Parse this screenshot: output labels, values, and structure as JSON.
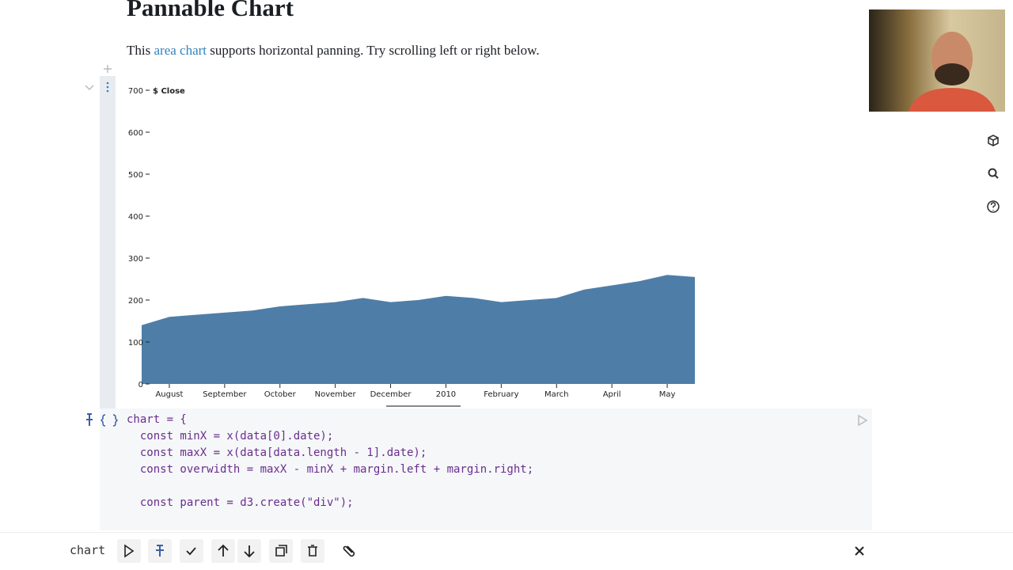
{
  "page": {
    "title": "Pannable Chart",
    "intro": {
      "before": "This",
      "link": "area chart",
      "after": "supports horizontal panning. Try scrolling left or right below."
    }
  },
  "chart_data": {
    "type": "area",
    "y_label": "$ Close",
    "color": "#4e7ea8",
    "categories": [
      null,
      "August",
      null,
      "September",
      null,
      "October",
      null,
      "November",
      null,
      "December",
      null,
      "2010",
      null,
      "February",
      null,
      "March",
      null,
      "April",
      null,
      "May",
      null
    ],
    "values": [
      140,
      160,
      165,
      170,
      175,
      185,
      190,
      195,
      205,
      195,
      200,
      210,
      205,
      195,
      200,
      205,
      225,
      235,
      245,
      260,
      255
    ],
    "ylim": [
      0,
      700
    ],
    "yticks": [
      0,
      100,
      200,
      300,
      400,
      500,
      600,
      700
    ]
  },
  "code": {
    "block1": [
      "chart = {",
      "  const minX = x(data[0].date);",
      "  const maxX = x(data[data.length - 1].date);",
      "  const overwidth = maxX - minX + margin.left + margin.right;"
    ],
    "block2": [
      "  const parent = d3.create(\"div\");"
    ]
  },
  "toolbar": {
    "cell_name": "chart"
  }
}
